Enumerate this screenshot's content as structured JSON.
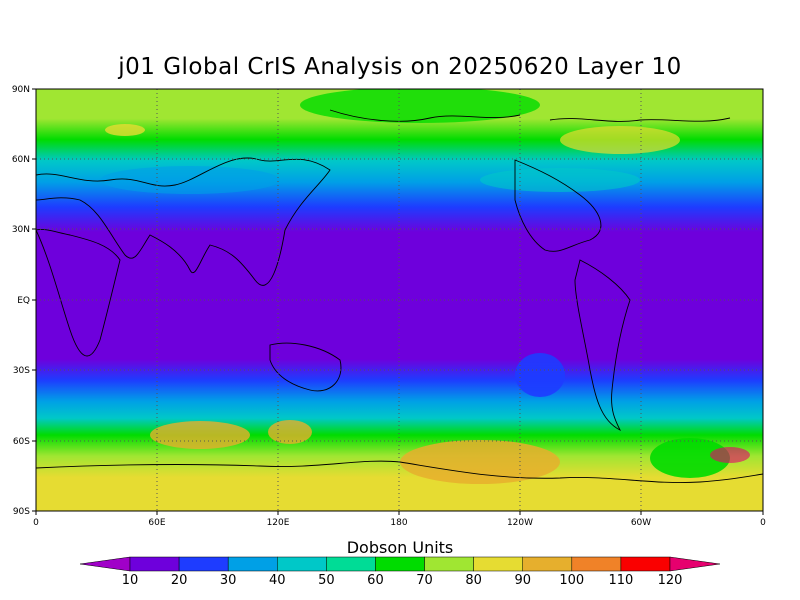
{
  "title": "j01 Global CrIS Analysis on 20250620 Layer 10",
  "map": {
    "lat_ticks": [
      "90N",
      "60N",
      "30N",
      "EQ",
      "30S",
      "60S",
      "90S"
    ],
    "lon_ticks": [
      "0",
      "60E",
      "120E",
      "180",
      "120W",
      "60W",
      "0"
    ],
    "grid": "dotted",
    "projection": "cylindrical-equidistant",
    "lon_range": [
      0,
      360
    ],
    "lat_range": [
      -90,
      90
    ]
  },
  "colorbar": {
    "title": "Dobson Units",
    "labels": [
      "10",
      "20",
      "30",
      "40",
      "50",
      "60",
      "70",
      "80",
      "90",
      "100",
      "110",
      "120"
    ],
    "colors": [
      "#a000c8",
      "#6e00dc",
      "#1e3cff",
      "#00a0e6",
      "#00c8c8",
      "#00dc96",
      "#00dc00",
      "#a0e632",
      "#e6dc32",
      "#e6af2d",
      "#f08228",
      "#fa0000",
      "#e6006e"
    ]
  }
}
